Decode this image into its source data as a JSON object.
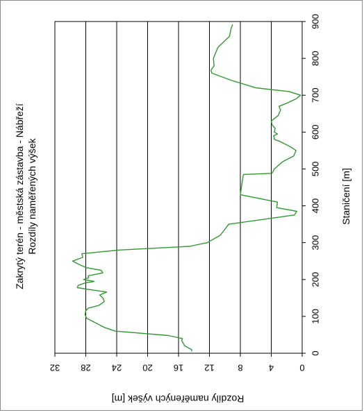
{
  "chart_data": {
    "type": "line",
    "orientation": "rotated-90-ccw",
    "title": "Zakrytý terén - městská zástavba - Nábřeží",
    "subtitle": "Rozdíly naměřených výšek",
    "xlabel": "Staničení [m]",
    "ylabel": "Rozdíly naměřených výšek [m]",
    "xlim": [
      0,
      900
    ],
    "ylim": [
      0,
      32
    ],
    "x_ticks": [
      0,
      100,
      200,
      300,
      400,
      500,
      600,
      700,
      800,
      900
    ],
    "y_ticks": [
      0,
      4,
      8,
      12,
      16,
      20,
      24,
      28,
      32
    ],
    "grid": "major y only",
    "legend": "none",
    "color": "#2e9a2e",
    "series": [
      {
        "x": [
          5,
          10,
          20,
          35,
          40,
          48,
          60,
          70,
          82,
          95,
          105,
          115,
          122,
          130,
          140,
          150,
          158,
          166,
          172,
          178,
          184,
          190,
          195,
          200,
          205,
          210,
          218,
          225,
          232,
          240,
          250,
          260,
          270,
          280,
          290,
          300,
          320,
          350,
          375,
          385,
          395,
          410,
          430,
          460,
          485,
          488,
          500,
          520,
          535,
          550,
          560,
          565,
          575,
          580,
          585,
          590,
          595,
          600,
          610,
          620,
          630,
          645,
          660,
          670,
          680,
          690,
          700,
          710,
          720,
          740,
          760,
          768,
          780,
          800,
          830,
          860,
          880,
          892
        ],
        "y": [
          14.3,
          14.3,
          15.2,
          15.6,
          15.5,
          17.3,
          24.2,
          25.6,
          26.7,
          27.9,
          28.1,
          28.0,
          27.7,
          26.3,
          25.6,
          25.8,
          26.2,
          25.3,
          27.3,
          29.1,
          29.0,
          28.2,
          26.9,
          28.3,
          27.6,
          27.7,
          25.8,
          26.0,
          27.9,
          28.8,
          29.7,
          28.4,
          28.5,
          23.7,
          14.6,
          12.3,
          10.6,
          9.5,
          1.0,
          0.7,
          3.3,
          3.2,
          8.0,
          7.8,
          7.6,
          3.9,
          3.6,
          2.5,
          1.1,
          0.8,
          1.5,
          2.0,
          2.9,
          3.6,
          3.6,
          3.7,
          3.2,
          3.6,
          3.5,
          3.9,
          4.0,
          3.1,
          2.8,
          3.0,
          1.8,
          0.8,
          0.2,
          1.7,
          6.0,
          9.1,
          11.7,
          11.8,
          11.4,
          11.5,
          10.9,
          9.4,
          9.2,
          9.0
        ]
      }
    ]
  }
}
